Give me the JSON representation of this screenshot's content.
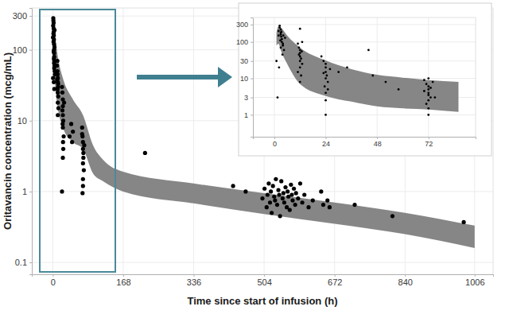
{
  "chart_data": [
    {
      "type": "scatter",
      "x_label": "Time since start of infusion (h)",
      "y_label": "Oritavancin concentration (mcg/mL)",
      "log": "y",
      "grid": true,
      "xlim": [
        -50,
        1050
      ],
      "ylim": [
        0.068,
        390
      ],
      "xticks": [
        0,
        168,
        336,
        504,
        672,
        840,
        1006
      ],
      "yticks": [
        0.1,
        1,
        10,
        100,
        300
      ],
      "series": [
        {
          "type": "area",
          "color": "#808080",
          "x": [
            1,
            6,
            12,
            24,
            48,
            72,
            96,
            120,
            168,
            336,
            504,
            672,
            840,
            1006
          ],
          "values": [
            250,
            150,
            80,
            40,
            20,
            12,
            4.5,
            2.8,
            1.9,
            1.3,
            0.95,
            0.7,
            0.5,
            0.33
          ],
          "lower": [
            80,
            30,
            15,
            8,
            5,
            4,
            1.8,
            1.4,
            1.0,
            0.68,
            0.48,
            0.35,
            0.25,
            0.16
          ]
        },
        {
          "type": "scatter",
          "color": "#000000",
          "marker": "circle",
          "x": [
            0.5,
            1,
            1.2,
            1.5,
            2,
            2,
            2.3,
            2.5,
            2.8,
            3,
            3,
            3.2,
            3.5,
            3.5,
            4,
            4,
            4.5,
            5,
            1.8,
            2.2,
            2.6,
            3.1,
            3.4,
            0.8,
            2.4,
            3.6,
            4.2,
            1.6,
            10,
            11,
            11.5,
            12,
            12,
            12.5,
            12,
            13,
            11,
            12,
            13.5,
            12,
            11.5,
            12.8,
            10.5,
            22,
            23,
            24,
            24,
            24,
            25,
            24,
            26,
            23,
            24.5,
            25,
            22,
            24,
            27,
            23.5,
            40,
            44,
            46,
            48,
            70,
            71,
            72,
            72,
            73,
            72,
            74,
            72,
            71,
            73,
            70,
            75,
            72,
            220,
            430,
            460,
            500,
            505,
            510,
            512,
            515,
            518,
            520,
            522,
            525,
            528,
            530,
            532,
            535,
            538,
            540,
            542,
            545,
            548,
            550,
            552,
            555,
            558,
            560,
            562,
            565,
            568,
            570,
            572,
            575,
            578,
            580,
            585,
            590,
            595,
            600,
            610,
            620,
            640,
            645,
            655,
            660,
            720,
            810,
            980
          ],
          "values": [
            150,
            220,
            280,
            260,
            240,
            200,
            180,
            160,
            140,
            120,
            100,
            90,
            80,
            70,
            60,
            110,
            50,
            45,
            130,
            95,
            75,
            65,
            55,
            40,
            35,
            28,
            190,
            170,
            60,
            50,
            45,
            40,
            35,
            30,
            25,
            22,
            70,
            18,
            15,
            12,
            28,
            33,
            38,
            30,
            25,
            20,
            16,
            12,
            10,
            8,
            6,
            14,
            5,
            4,
            1.0,
            3,
            18,
            9,
            6,
            9,
            5,
            7,
            8,
            6,
            5,
            4,
            3.5,
            2.5,
            2,
            1.5,
            0.95,
            3,
            6.5,
            4.5,
            1.2,
            3.5,
            1.2,
            1.0,
            0.8,
            1.1,
            0.6,
            0.9,
            1.3,
            0.7,
            1.0,
            0.5,
            1.2,
            0.85,
            0.75,
            1.5,
            0.65,
            1.05,
            0.9,
            0.45,
            1.4,
            0.8,
            0.95,
            0.7,
            1.15,
            0.6,
            1.0,
            0.85,
            0.55,
            1.25,
            0.9,
            0.75,
            1.1,
            0.65,
            0.95,
            0.8,
            1.3,
            0.7,
            0.9,
            0.6,
            0.75,
            1.0,
            0.65,
            0.75,
            0.6,
            0.65,
            0.45,
            0.37
          ]
        }
      ]
    },
    {
      "type": "scatter",
      "log": "y",
      "grid": true,
      "xlim": [
        -10,
        94
      ],
      "ylim": [
        0.25,
        470
      ],
      "xticks": [
        0,
        24,
        48,
        72
      ],
      "yticks": [
        1,
        3,
        10,
        30,
        100,
        300
      ],
      "series": [
        {
          "type": "area",
          "color": "#808080",
          "x": [
            1,
            2,
            3,
            6,
            12,
            24,
            36,
            48,
            60,
            72,
            86
          ],
          "values": [
            180,
            270,
            250,
            150,
            70,
            31,
            18,
            12.6,
            10.5,
            9,
            8
          ],
          "lower": [
            80,
            90,
            60,
            25,
            7,
            3.3,
            2.3,
            1.7,
            1.5,
            1.4,
            1.2
          ]
        },
        {
          "type": "scatter",
          "color": "#000000",
          "marker": "circle",
          "x": [
            1,
            1.5,
            2,
            2,
            2.5,
            2.5,
            3,
            3,
            3,
            3.2,
            3.5,
            3.5,
            4,
            4,
            3,
            4.5,
            5,
            2.8,
            3.8,
            2.2,
            3.3,
            4.2,
            11,
            11.5,
            12,
            12,
            12,
            12.5,
            12,
            13,
            12,
            11,
            12.5,
            12,
            13,
            12,
            11.5,
            12.8,
            22,
            23,
            24,
            24,
            24,
            24.5,
            24,
            25,
            23.5,
            24,
            24,
            24,
            26,
            23,
            25,
            30,
            34,
            44,
            46,
            52,
            58,
            70,
            71,
            72,
            72,
            72,
            72,
            73,
            72,
            71,
            72,
            72,
            74,
            70,
            75,
            73,
            72
          ],
          "values": [
            30,
            3,
            150,
            200,
            280,
            250,
            220,
            180,
            160,
            140,
            120,
            100,
            90,
            80,
            70,
            60,
            130,
            110,
            45,
            20,
            190,
            150,
            90,
            70,
            60,
            50,
            40,
            35,
            30,
            25,
            20,
            15,
            12,
            8,
            100,
            230,
            45,
            55,
            40,
            30,
            25,
            20,
            15,
            12,
            10,
            8,
            6,
            4,
            2.5,
            1,
            18,
            14,
            5,
            15,
            20,
            60,
            12,
            8,
            5,
            9,
            7,
            6,
            5,
            4,
            3.5,
            3,
            2.5,
            2,
            1.5,
            1,
            8,
            4.5,
            3,
            5.5,
            10
          ]
        }
      ]
    }
  ]
}
